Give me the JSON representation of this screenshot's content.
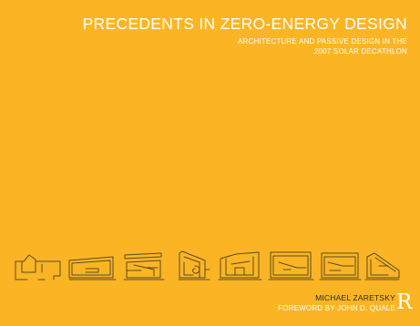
{
  "colors": {
    "background": "#fbb524",
    "title": "#ffffff",
    "subtitle": "#ffffff",
    "drawings": "#5a4a22",
    "author": "#2a2a2a",
    "foreword": "#ffffff",
    "logo": "#ffffff"
  },
  "book": {
    "title": "PRECEDENTS IN ZERO-ENERGY DESIGN",
    "subtitle_lines": [
      "ARCHITECTURE AND PASSIVE DESIGN IN THE",
      "2007 SOLAR DECATHLON"
    ],
    "author": "MICHAEL ZARETSKY",
    "foreword": "FOREWORD BY JOHN D. QUALE"
  },
  "publisher_logo": {
    "mark": "R",
    "icon": "routledge-logo-icon"
  },
  "drawings": {
    "icon": "house-section-sketch-icon",
    "count": 8
  }
}
